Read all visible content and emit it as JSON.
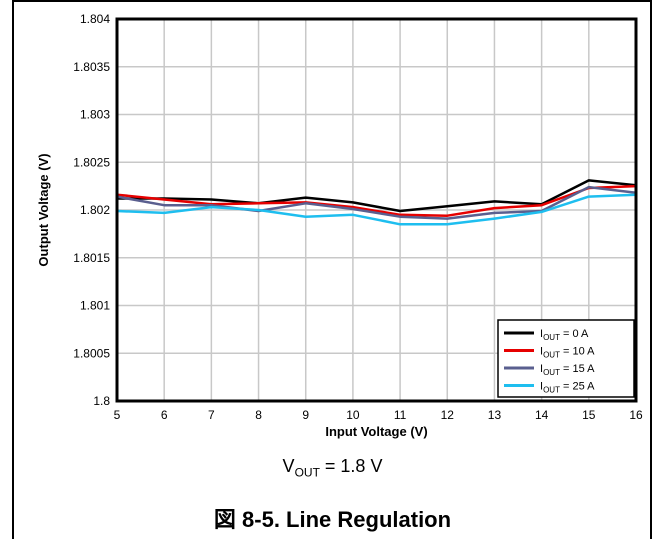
{
  "chart_data": {
    "type": "line",
    "xlabel": "Input Voltage (V)",
    "ylabel": "Output Voltage (V)",
    "xlim": [
      5,
      16
    ],
    "ylim": [
      1.8,
      1.804
    ],
    "x_ticks": [
      "5",
      "6",
      "7",
      "8",
      "9",
      "10",
      "11",
      "12",
      "13",
      "14",
      "15",
      "16"
    ],
    "y_ticks": [
      "1.8",
      "1.8005",
      "1.801",
      "1.8015",
      "1.802",
      "1.8025",
      "1.803",
      "1.8035",
      "1.804"
    ],
    "grid": true,
    "legend_position": "bottom-right",
    "x": [
      5,
      6,
      7,
      8,
      9,
      10,
      11,
      12,
      13,
      14,
      15,
      16
    ],
    "series": [
      {
        "name": "I_OUT = 0 A",
        "label_main": "I",
        "label_sub": "OUT",
        "label_rest": " = 0 A",
        "color": "#000000",
        "values": [
          1.80212,
          1.80212,
          1.80211,
          1.80207,
          1.80213,
          1.80208,
          1.80199,
          1.80204,
          1.80209,
          1.80206,
          1.80231,
          1.80226
        ]
      },
      {
        "name": "I_OUT = 10 A",
        "label_main": "I",
        "label_sub": "OUT",
        "label_rest": " = 10 A",
        "color": "#e60000",
        "values": [
          1.80216,
          1.80211,
          1.80206,
          1.80207,
          1.80208,
          1.80203,
          1.80195,
          1.80194,
          1.80202,
          1.80205,
          1.80223,
          1.80225
        ]
      },
      {
        "name": "I_OUT = 15 A",
        "label_main": "I",
        "label_sub": "OUT",
        "label_rest": " = 15 A",
        "color": "#5a5f8f",
        "values": [
          1.80214,
          1.80205,
          1.80205,
          1.80199,
          1.80207,
          1.80201,
          1.80193,
          1.80191,
          1.80197,
          1.80199,
          1.80224,
          1.80218
        ]
      },
      {
        "name": "I_OUT = 25 A",
        "label_main": "I",
        "label_sub": "OUT",
        "label_rest": " = 25 A",
        "color": "#1ebeef",
        "values": [
          1.80199,
          1.80197,
          1.80203,
          1.802,
          1.80193,
          1.80195,
          1.80185,
          1.80185,
          1.80191,
          1.80198,
          1.80214,
          1.80216
        ]
      }
    ]
  },
  "caption": {
    "vout_main": "V",
    "vout_sub": "OUT",
    "vout_rest": " = 1.8 V",
    "figure_title": "図 8-5. Line Regulation"
  }
}
